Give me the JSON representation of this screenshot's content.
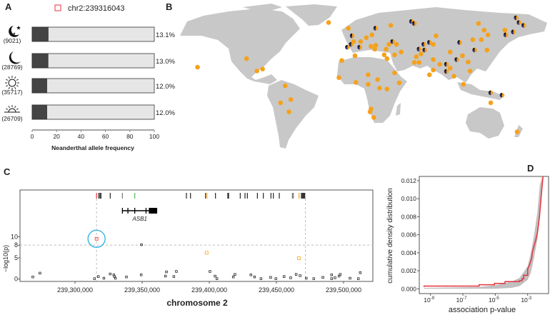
{
  "panel_labels": {
    "a": "A",
    "b": "B",
    "c": "C",
    "d": "D"
  },
  "colors": {
    "highlight": "#e8323c",
    "orange": "#f5a11c",
    "navy": "#2b2f7a",
    "dark": "#444444",
    "light": "#e6e6e6",
    "land": "#c8c8c8",
    "circle": "#29aee4",
    "green": "#5cb85c",
    "band": "#c0c0c0"
  },
  "chart_data": [
    {
      "type": "bar",
      "panel": "A",
      "legend": {
        "marker": "open-square",
        "label": "chr2:239316043"
      },
      "xlabel": "Neanderthal allele frequency",
      "xlim": [
        0,
        100
      ],
      "xticks": [
        "0",
        "20",
        "40",
        "60",
        "80",
        "100"
      ],
      "categories": [
        {
          "icon": "moon-stars-icon",
          "count": "(9021)",
          "value": 13.1,
          "label": "13.1%"
        },
        {
          "icon": "crescent-moon-icon",
          "count": "(28769)",
          "value": 13.0,
          "label": "13.0%"
        },
        {
          "icon": "sun-icon",
          "count": "(35717)",
          "value": 12.0,
          "label": "12.0%"
        },
        {
          "icon": "sunrise-icon",
          "count": "(26709)",
          "value": 12.0,
          "label": "12.0%"
        }
      ]
    },
    {
      "type": "map",
      "panel": "B",
      "marker_legend": "orange = dot, mixed = pie of orange/navy/black",
      "points": [
        [
          -25,
          65,
          0
        ],
        [
          -164,
          18,
          0
        ],
        [
          -112,
          27,
          0
        ],
        [
          -101,
          14,
          0
        ],
        [
          -95,
          16,
          0
        ],
        [
          -71,
          -1.5,
          0
        ],
        [
          -65,
          -16,
          0
        ],
        [
          -76,
          -19.5,
          0
        ],
        [
          -67,
          -29,
          0
        ],
        [
          -4,
          59,
          0
        ],
        [
          0,
          51,
          1
        ],
        [
          -1,
          42,
          1
        ],
        [
          -5,
          39,
          1
        ],
        [
          1.5,
          45,
          0
        ],
        [
          9,
          45,
          0
        ],
        [
          8,
          39,
          1
        ],
        [
          15,
          49,
          0
        ],
        [
          21,
          52,
          0
        ],
        [
          25,
          59,
          1
        ],
        [
          20,
          40,
          0
        ],
        [
          24,
          37,
          0
        ],
        [
          25,
          41,
          0
        ],
        [
          41,
          62,
          0
        ],
        [
          63,
          66,
          1
        ],
        [
          66,
          64,
          1
        ],
        [
          43,
          45,
          1
        ],
        [
          39,
          42,
          0
        ],
        [
          47,
          42,
          0
        ],
        [
          52,
          34,
          0
        ],
        [
          36,
          37,
          0
        ],
        [
          34,
          31,
          0
        ],
        [
          37,
          27,
          0
        ],
        [
          45,
          31,
          0
        ],
        [
          45,
          12,
          0
        ],
        [
          50,
          1.5,
          0
        ],
        [
          66,
          23,
          0
        ],
        [
          71,
          23,
          0
        ],
        [
          68,
          29,
          0
        ],
        [
          73,
          32,
          0
        ],
        [
          76,
          42,
          1
        ],
        [
          71,
          37,
          1
        ],
        [
          77,
          36,
          1
        ],
        [
          82,
          44,
          1
        ],
        [
          86,
          42,
          0
        ],
        [
          89,
          51,
          0
        ],
        [
          86,
          26,
          0
        ],
        [
          86,
          15,
          0
        ],
        [
          82,
          10,
          0
        ],
        [
          93,
          21,
          0
        ],
        [
          100,
          13.5,
          1
        ],
        [
          100,
          21,
          1
        ],
        [
          104,
          17,
          0
        ],
        [
          108,
          8.5,
          0
        ],
        [
          111,
          26,
          1
        ],
        [
          104,
          34,
          0
        ],
        [
          114,
          44,
          1
        ],
        [
          117,
          30,
          0
        ],
        [
          123,
          23.5,
          0
        ],
        [
          125,
          14,
          0
        ],
        [
          118,
          0,
          0
        ],
        [
          128,
          47,
          0
        ],
        [
          137,
          47,
          0
        ],
        [
          130,
          36,
          1
        ],
        [
          143,
          36,
          0
        ],
        [
          144,
          52,
          0
        ],
        [
          140,
          57,
          0
        ],
        [
          134,
          64,
          0
        ],
        [
          162,
          57,
          0
        ],
        [
          163,
          52,
          1
        ],
        [
          171,
          55,
          1
        ],
        [
          174,
          70,
          1
        ],
        [
          177,
          65,
          1
        ],
        [
          182,
          62,
          1
        ],
        [
          147,
          -9,
          1
        ],
        [
          159,
          -11.5,
          1
        ],
        [
          147,
          -19.5,
          0
        ],
        [
          175,
          -50,
          0
        ],
        [
          -11,
          25,
          0
        ],
        [
          3,
          30,
          0
        ],
        [
          -14,
          7,
          0
        ],
        [
          4,
          2,
          0
        ],
        [
          17,
          10,
          0
        ],
        [
          17,
          0,
          0
        ],
        [
          27,
          5,
          0
        ],
        [
          29,
          -4,
          0
        ],
        [
          37,
          -5,
          0
        ],
        [
          20,
          -26,
          0
        ],
        [
          23,
          -35,
          0
        ],
        [
          19,
          -29,
          0
        ]
      ]
    },
    {
      "type": "scatter",
      "panel": "C",
      "xlabel": "chromosome 2",
      "ylabel": "−log10(p)",
      "xlim": [
        239259000,
        239521000
      ],
      "ylim": [
        0,
        10
      ],
      "xticks": [
        {
          "v": 239300000,
          "label": "239,300,000"
        },
        {
          "v": 239350000,
          "label": "239,350,000"
        },
        {
          "v": 239400000,
          "label": "239,400,000"
        },
        {
          "v": 239450000,
          "label": "239,450,000"
        },
        {
          "v": 239500000,
          "label": "239,500,000"
        }
      ],
      "yticks": [
        {
          "v": 0,
          "label": "0"
        },
        {
          "v": 5,
          "label": "5"
        },
        {
          "v": 8,
          "label": "8"
        },
        {
          "v": 10,
          "label": "10"
        }
      ],
      "threshold": 8,
      "region": [
        239316043,
        239471600
      ],
      "gene": {
        "name": "ASB1",
        "start": 239335300,
        "end": 239361200,
        "exons": [
          239335300,
          239339400,
          239344500,
          239352900
        ],
        "cds": [
          239355000,
          239361200
        ]
      },
      "track_ticks": [
        [
          239316043,
          "red"
        ],
        [
          239317730,
          "black"
        ],
        [
          239318620,
          "black"
        ],
        [
          239319330,
          "black"
        ],
        [
          239326240,
          "black"
        ],
        [
          239335280,
          "gray"
        ],
        [
          239344500,
          "green"
        ],
        [
          239382980,
          "black"
        ],
        [
          239386000,
          "black"
        ],
        [
          239397170,
          "black"
        ],
        [
          239398230,
          "orange"
        ],
        [
          239404610,
          "black"
        ],
        [
          239413830,
          "black"
        ],
        [
          239414360,
          "black"
        ],
        [
          239423050,
          "black"
        ],
        [
          239426600,
          "black"
        ],
        [
          239428370,
          "black"
        ],
        [
          239435820,
          "black"
        ],
        [
          239440250,
          "black"
        ],
        [
          239445920,
          "black"
        ],
        [
          239447700,
          "black"
        ],
        [
          239452130,
          "black"
        ],
        [
          239461880,
          "gray"
        ],
        [
          239462590,
          "gray"
        ],
        [
          239466840,
          "orange"
        ],
        [
          239468600,
          "black"
        ],
        [
          239469300,
          "black"
        ],
        [
          239470000,
          "black"
        ],
        [
          239470700,
          "black"
        ],
        [
          239471100,
          "black"
        ]
      ],
      "points": [
        [
          239268600,
          0.5,
          "black"
        ],
        [
          239273900,
          1.4,
          "black"
        ],
        [
          239314500,
          0.1,
          "black"
        ],
        [
          239317400,
          0.6,
          "black"
        ],
        [
          239321500,
          0.2,
          "black"
        ],
        [
          239326200,
          1.2,
          "black"
        ],
        [
          239328900,
          1.0,
          "black"
        ],
        [
          239329400,
          0.6,
          "black"
        ],
        [
          239330100,
          0.2,
          "black"
        ],
        [
          239338300,
          0.5,
          "black"
        ],
        [
          239349300,
          1.0,
          "black"
        ],
        [
          239367400,
          0.7,
          "black"
        ],
        [
          239368100,
          1.7,
          "black"
        ],
        [
          239373600,
          0.6,
          "black"
        ],
        [
          239375500,
          1.8,
          "black"
        ],
        [
          239400500,
          1.8,
          "black"
        ],
        [
          239404300,
          0.7,
          "black"
        ],
        [
          239405700,
          0.1,
          "black"
        ],
        [
          239417900,
          0.5,
          "black"
        ],
        [
          239419100,
          1.1,
          "black"
        ],
        [
          239431000,
          1.0,
          "black"
        ],
        [
          239433700,
          0.5,
          "black"
        ],
        [
          239438500,
          0.1,
          "black"
        ],
        [
          239445700,
          0.4,
          "black"
        ],
        [
          239449600,
          0.1,
          "black"
        ],
        [
          239455700,
          0.6,
          "black"
        ],
        [
          239460600,
          0.3,
          "black"
        ],
        [
          239464700,
          1.1,
          "black"
        ],
        [
          239467600,
          0.8,
          "black"
        ],
        [
          239472200,
          0.2,
          "black"
        ],
        [
          239477800,
          0.1,
          "black"
        ],
        [
          239484600,
          0.4,
          "black"
        ],
        [
          239491100,
          1.0,
          "black"
        ],
        [
          239491100,
          0.1,
          "black"
        ],
        [
          239493600,
          0.3,
          "black"
        ],
        [
          239496600,
          0.7,
          "black"
        ],
        [
          239497500,
          1.1,
          "black"
        ],
        [
          239504800,
          0.2,
          "black"
        ],
        [
          239511000,
          0.1,
          "black"
        ],
        [
          239512400,
          1.5,
          "black"
        ],
        [
          239316043,
          9.5,
          "red"
        ],
        [
          239349500,
          8.1,
          "black"
        ],
        [
          239398000,
          6.2,
          "orange"
        ],
        [
          239466700,
          4.9,
          "orange"
        ]
      ]
    },
    {
      "type": "line",
      "panel": "D",
      "xlabel": "association p-value",
      "ylabel": "cumulative density distribution",
      "xscale": "log",
      "xticks": [
        {
          "v": -9,
          "base": "10",
          "exp": "-9"
        },
        {
          "v": -7,
          "base": "10",
          "exp": "-7"
        },
        {
          "v": -5,
          "base": "10",
          "exp": "-5"
        },
        {
          "v": -3,
          "base": "10",
          "exp": "-3"
        }
      ],
      "yticks": [
        "0.000",
        "0.002",
        "0.004",
        "0.006",
        "0.008",
        "0.010",
        "0.012"
      ],
      "ylim": [
        0,
        0.012
      ],
      "observed": [
        [
          -9.4,
          0.0002
        ],
        [
          -9.4,
          0.0003
        ],
        [
          -6.0,
          0.0003
        ],
        [
          -6.0,
          0.00045
        ],
        [
          -5.05,
          0.00045
        ],
        [
          -5.05,
          0.0006
        ],
        [
          -4.4,
          0.0006
        ],
        [
          -4.4,
          0.0008
        ],
        [
          -3.5,
          0.0008
        ],
        [
          -3.5,
          0.0009
        ],
        [
          -3.35,
          0.0009
        ],
        [
          -3.35,
          0.0011
        ],
        [
          -3.25,
          0.0011
        ],
        [
          -3.25,
          0.0015
        ],
        [
          -3.0,
          0.0015
        ],
        [
          -3.0,
          0.0022
        ],
        [
          -2.9,
          0.0026
        ],
        [
          -2.75,
          0.0034
        ],
        [
          -2.72,
          0.004
        ],
        [
          -2.6,
          0.0048
        ],
        [
          -2.5,
          0.0054
        ],
        [
          -2.4,
          0.0062
        ],
        [
          -2.27,
          0.008
        ],
        [
          -2.17,
          0.0101
        ],
        [
          -2.05,
          0.0125
        ]
      ],
      "null_band": [
        [
          -9.4,
          0,
          0.0001
        ],
        [
          -6,
          0,
          0.0002
        ],
        [
          -5,
          0,
          0.0004
        ],
        [
          -4,
          0.0001,
          0.0008
        ],
        [
          -3.5,
          0.0003,
          0.0012
        ],
        [
          -3,
          0.001,
          0.0025
        ],
        [
          -2.8,
          0.0018,
          0.004
        ],
        [
          -2.6,
          0.0035,
          0.006
        ],
        [
          -2.4,
          0.0055,
          0.0085
        ],
        [
          -2.25,
          0.008,
          0.0115
        ],
        [
          -2.1,
          0.011,
          0.0125
        ]
      ]
    }
  ]
}
